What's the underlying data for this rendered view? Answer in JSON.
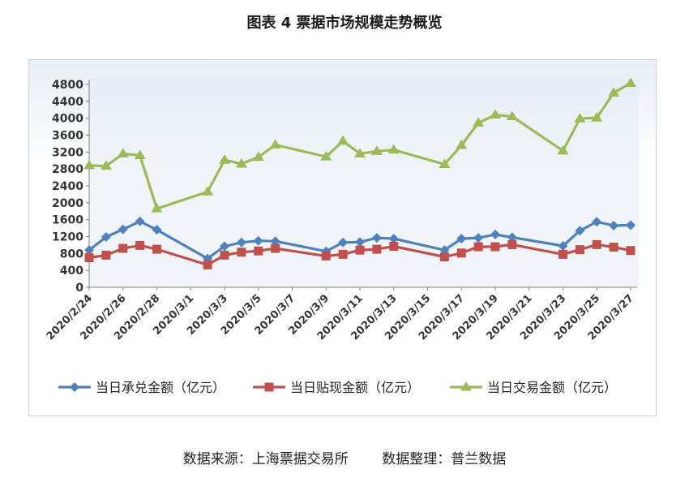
{
  "title": "图表 4  票据市场规模走势概览",
  "footer": {
    "source": "数据来源：上海票据交易所",
    "compiled": "数据整理：普兰数据"
  },
  "colors": {
    "acceptance": "#4f81bd",
    "discount": "#c0504d",
    "trading": "#9bbb59"
  },
  "chart_data": {
    "type": "line",
    "title": "图表 4  票据市场规模走势概览",
    "xlabel": "",
    "ylabel": "",
    "ylim": [
      0,
      4800
    ],
    "yticks": [
      0,
      400,
      800,
      1200,
      1600,
      2000,
      2400,
      2800,
      3200,
      3600,
      4000,
      4400,
      4800
    ],
    "grid": false,
    "legend": "bottom",
    "xlim": [
      "2020/2/24",
      "2020/3/27"
    ],
    "xticks": [
      "2020/2/24",
      "2020/2/26",
      "2020/2/28",
      "2020/3/1",
      "2020/3/3",
      "2020/3/5",
      "2020/3/7",
      "2020/3/9",
      "2020/3/11",
      "2020/3/13",
      "2020/3/15",
      "2020/3/17",
      "2020/3/19",
      "2020/3/21",
      "2020/3/23",
      "2020/3/25",
      "2020/3/27"
    ],
    "x": [
      "2020/2/24",
      "2020/2/25",
      "2020/2/26",
      "2020/2/27",
      "2020/2/28",
      "2020/3/2",
      "2020/3/3",
      "2020/3/4",
      "2020/3/5",
      "2020/3/6",
      "2020/3/9",
      "2020/3/10",
      "2020/3/11",
      "2020/3/12",
      "2020/3/13",
      "2020/3/16",
      "2020/3/17",
      "2020/3/18",
      "2020/3/19",
      "2020/3/20",
      "2020/3/23",
      "2020/3/24",
      "2020/3/25",
      "2020/3/26",
      "2020/3/27"
    ],
    "series": [
      {
        "name": "当日承兑金额（亿元）",
        "marker": "diamond",
        "values": [
          880,
          1190,
          1370,
          1560,
          1360,
          680,
          970,
          1060,
          1100,
          1090,
          850,
          1060,
          1070,
          1170,
          1150,
          880,
          1150,
          1170,
          1250,
          1180,
          980,
          1340,
          1550,
          1460,
          1470
        ]
      },
      {
        "name": "当日贴现金额（亿元）",
        "marker": "square",
        "values": [
          700,
          760,
          920,
          990,
          900,
          530,
          760,
          830,
          860,
          920,
          740,
          780,
          880,
          900,
          970,
          720,
          810,
          960,
          960,
          1010,
          780,
          890,
          1010,
          950,
          870
        ]
      },
      {
        "name": "当日交易金额（亿元）",
        "marker": "triangle",
        "values": [
          2880,
          2870,
          3160,
          3120,
          1860,
          2260,
          3010,
          2920,
          3080,
          3370,
          3090,
          3460,
          3160,
          3220,
          3250,
          2910,
          3360,
          3890,
          4080,
          4040,
          3230,
          3990,
          4010,
          4600,
          4830
        ]
      }
    ]
  }
}
